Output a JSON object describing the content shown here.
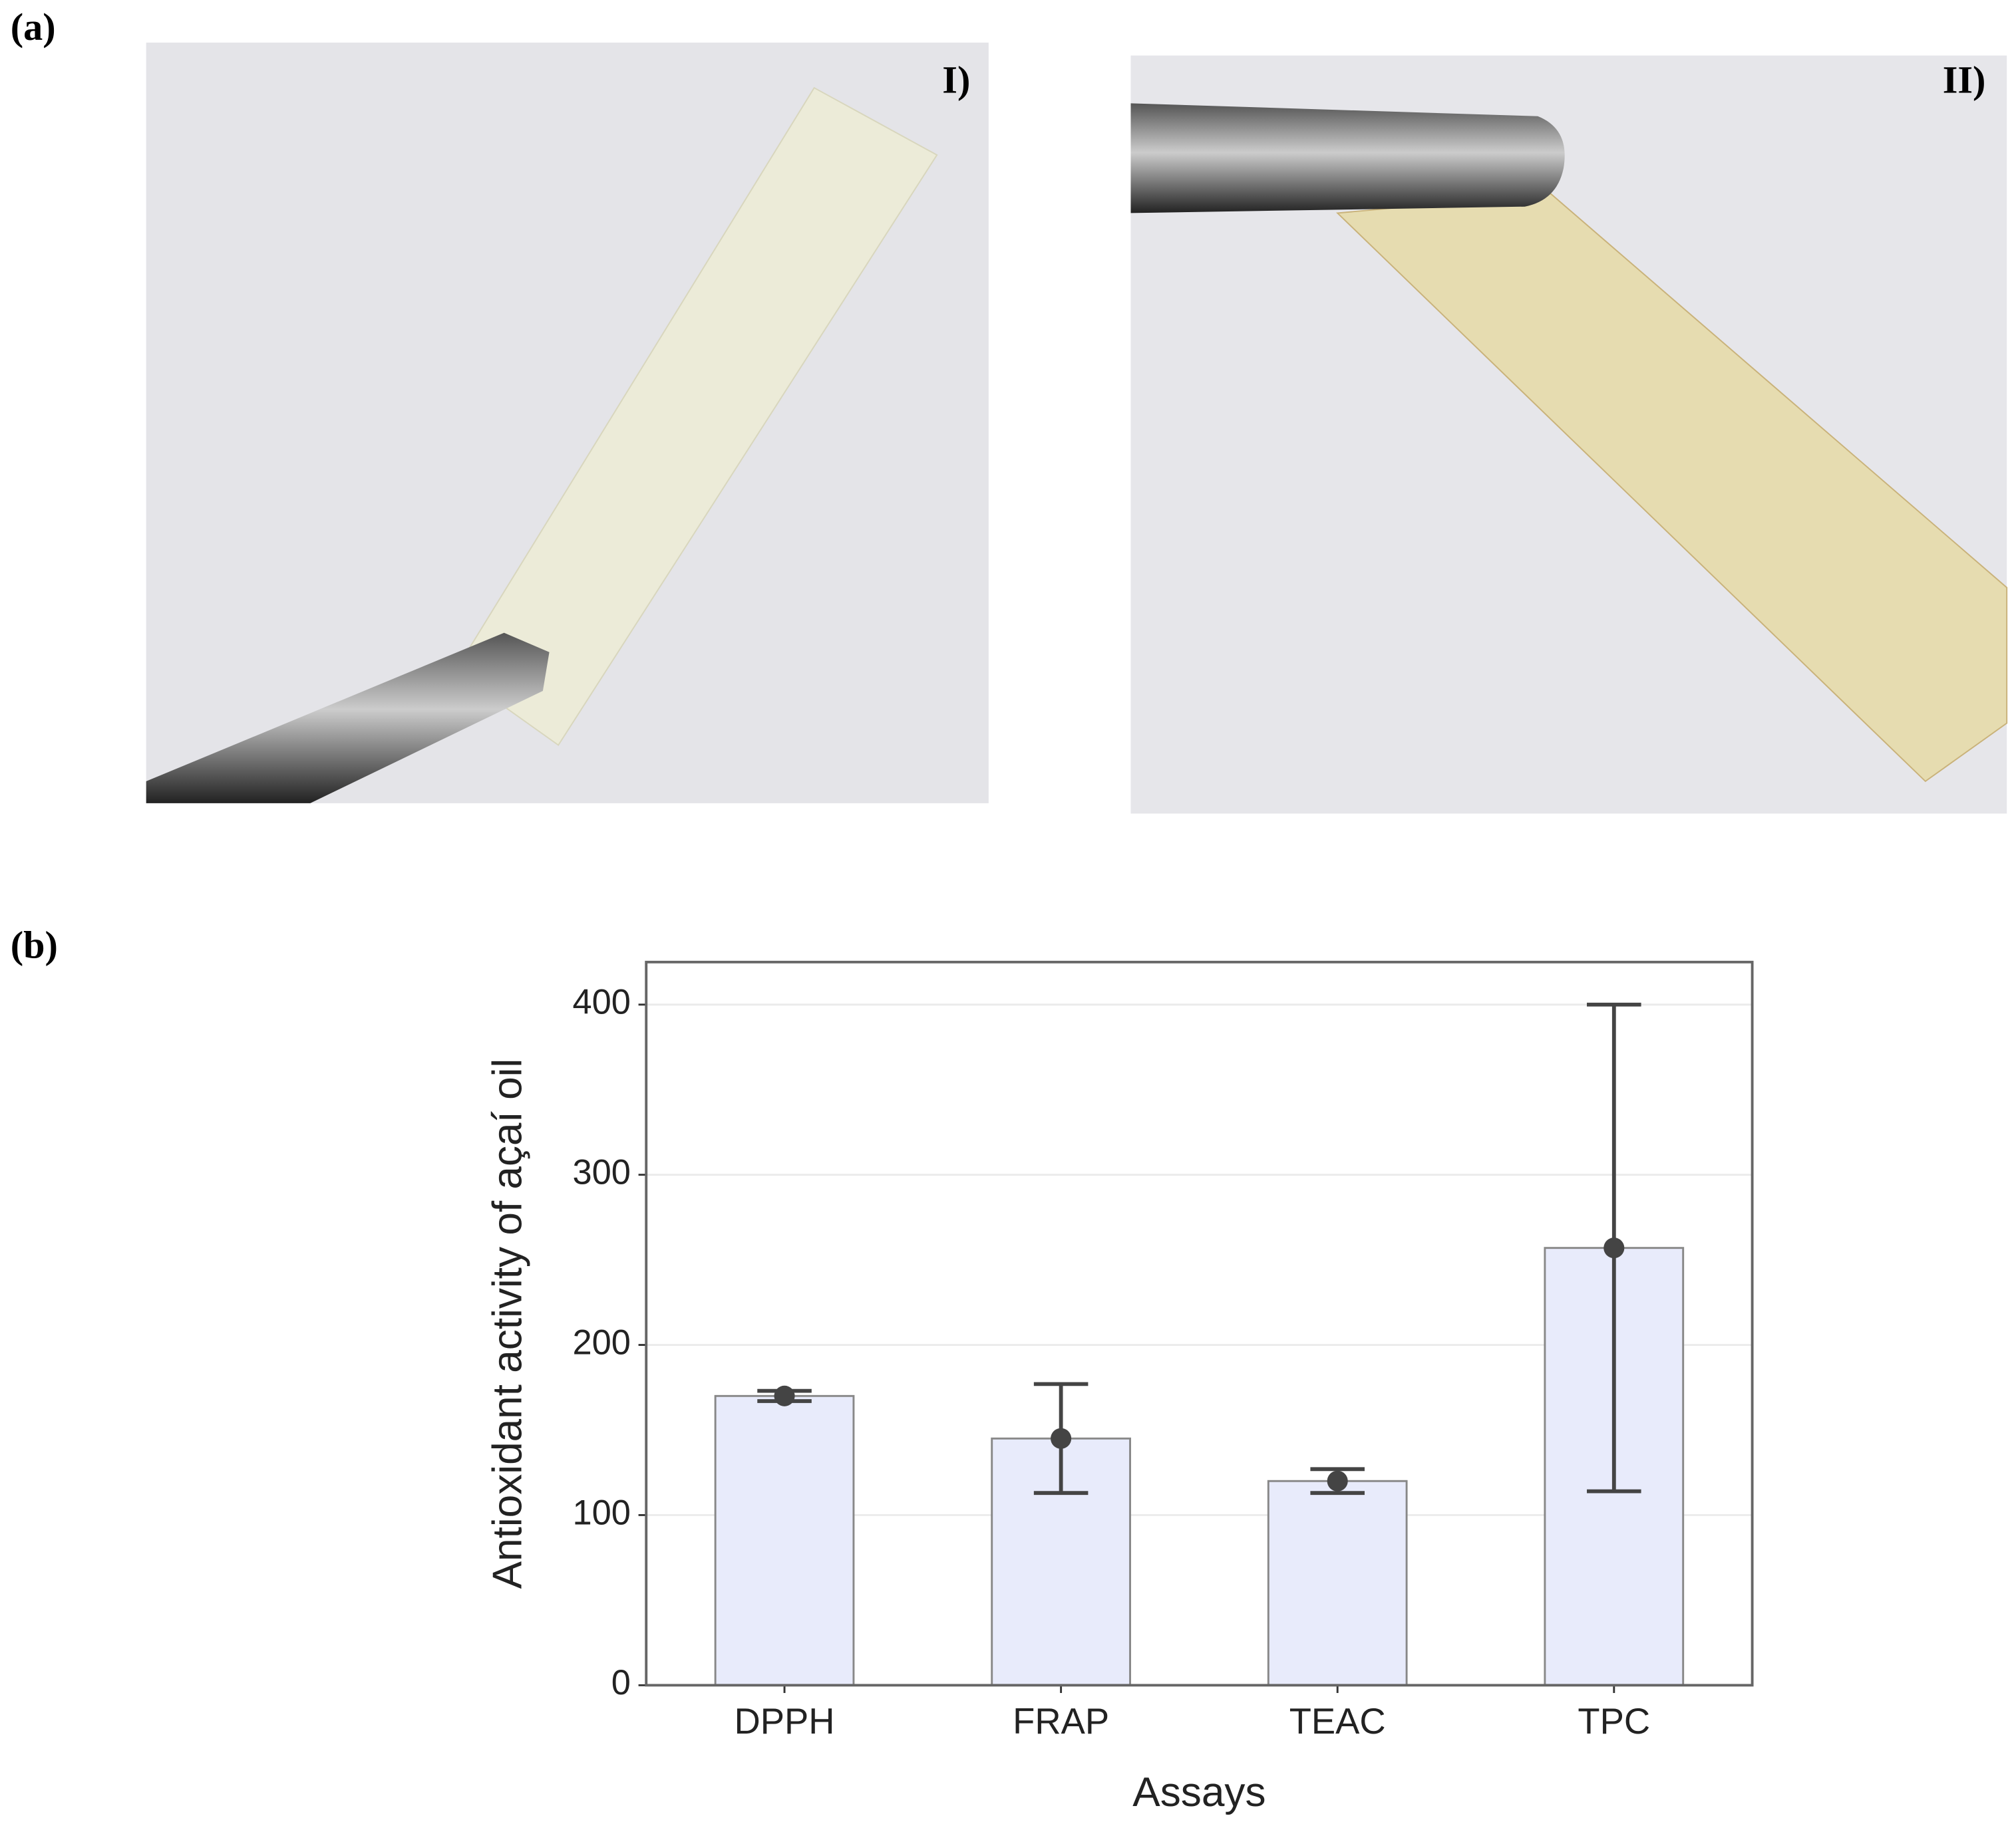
{
  "panel_labels": {
    "a": "(a)",
    "b": "(b)",
    "photo_1": "I)",
    "photo_2": "II)"
  },
  "chart_data": {
    "type": "bar",
    "x_label": "Assays",
    "y_label": "Antioxidant activity of açaí oil",
    "categories": [
      "DPPH",
      "FRAP",
      "TEAC",
      "TPC"
    ],
    "values": [
      170,
      145,
      120,
      257
    ],
    "errors": [
      3,
      32,
      7,
      143
    ],
    "color": "#e8ebfb",
    "ylim": [
      0,
      425
    ],
    "yticks": [
      0,
      100,
      200,
      300,
      400
    ],
    "grid": true
  }
}
